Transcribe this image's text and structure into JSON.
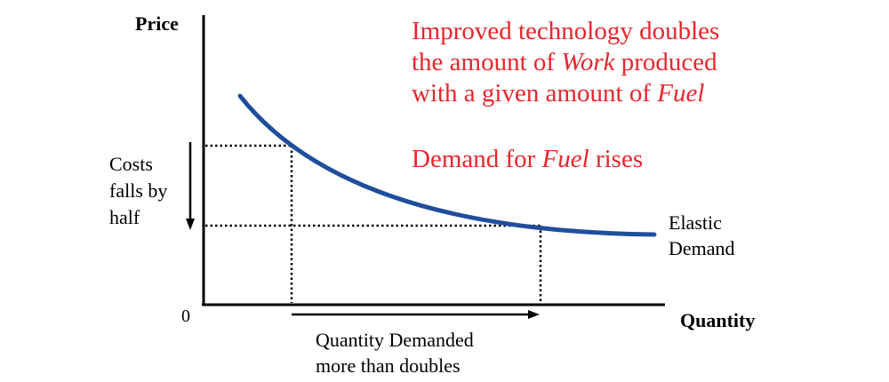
{
  "axes": {
    "y_label": "Price",
    "x_label": "Quantity",
    "origin_label": "0"
  },
  "curve": {
    "label_line1": "Elastic",
    "label_line2": "Demand",
    "color": "#1f4e9c"
  },
  "annotations": {
    "tech_line1": "Improved technology doubles",
    "tech_line2_a": "the amount of ",
    "tech_line2_em": "Work",
    "tech_line2_b": " produced",
    "tech_line3_a": "with a given amount of ",
    "tech_line3_em": "Fuel",
    "demand_a": "Demand for ",
    "demand_em": "Fuel",
    "demand_b": " rises",
    "text_color": "#e8262d",
    "cost_line1": "Costs",
    "cost_line2": "falls by",
    "cost_line3": "half",
    "quantity_line1": "Quantity Demanded",
    "quantity_line2": "more than doubles"
  }
}
